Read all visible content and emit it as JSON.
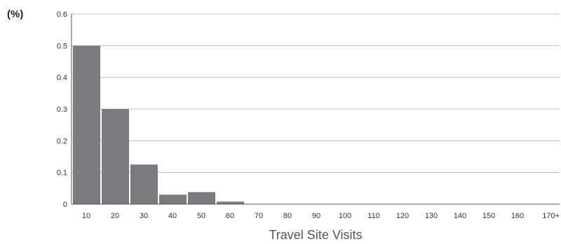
{
  "chart_data": {
    "type": "bar",
    "title": "",
    "ylabel": "(%)",
    "xlabel": "Travel Site Visits",
    "x_ticks": [
      "10",
      "20",
      "30",
      "40",
      "50",
      "60",
      "70",
      "80",
      "90",
      "100",
      "110",
      "120",
      "130",
      "140",
      "150",
      "160",
      "170+"
    ],
    "y_ticks": [
      "0",
      "0.1",
      "0.2",
      "0.3",
      "0.4",
      "0.5",
      "0.6"
    ],
    "ylim": [
      0,
      0.6
    ],
    "grid": true,
    "legend": "none",
    "bar_color": "#7b7b7f",
    "grid_color": "#bdbdbd",
    "categories": [
      "10",
      "20",
      "30",
      "40",
      "50",
      "60",
      "70",
      "80",
      "90",
      "100",
      "110",
      "120",
      "130",
      "140",
      "150",
      "160",
      "170+"
    ],
    "values": [
      0.5,
      0.3,
      0.125,
      0.03,
      0.038,
      0.008,
      0,
      0,
      0,
      0,
      0,
      0,
      0,
      0,
      0,
      0,
      0
    ]
  }
}
